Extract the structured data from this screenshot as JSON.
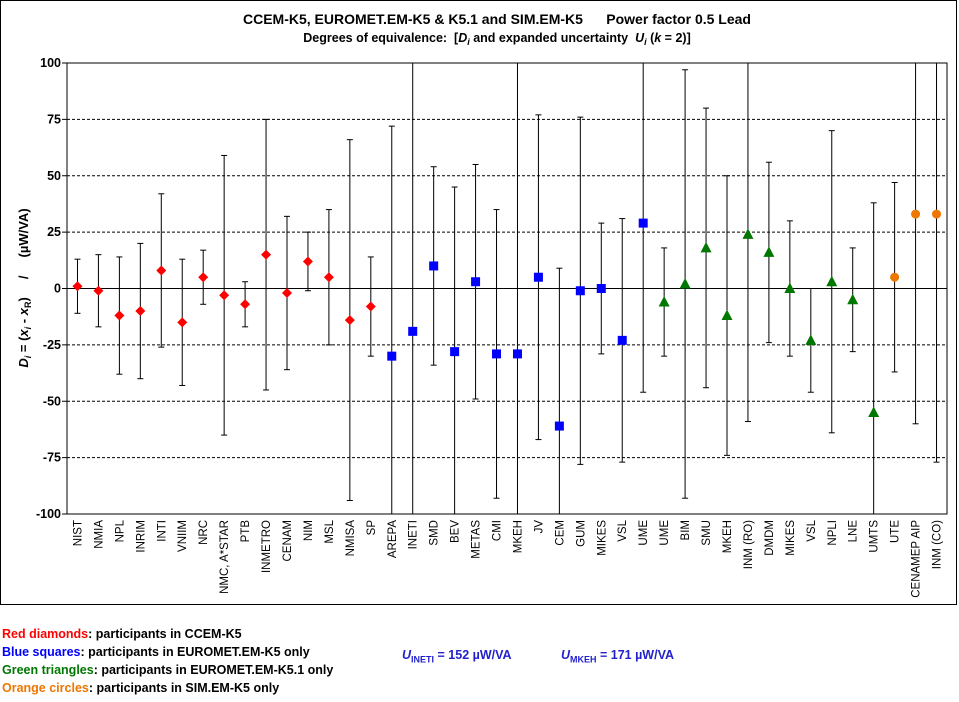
{
  "chart_data": {
    "type": "scatter",
    "title": "CCEM-K5, EUROMET.EM-K5 & K5.1 and SIM.EM-K5      Power factor 0.5 Lead",
    "subtitle_prefix": "Degrees of equivalence:  [",
    "subtitle_D": "D",
    "subtitle_i": "i",
    "subtitle_mid": " and expanded uncertainty  ",
    "subtitle_U": "U",
    "subtitle_k": "k",
    "subtitle_end": " = 2)]",
    "ylabel": "D_i = (x_i - x_R)   /   (µW/VA)",
    "ylim": [
      -100,
      100
    ],
    "yticks": [
      -100,
      -75,
      -50,
      -25,
      0,
      25,
      50,
      75,
      100
    ],
    "grid": true,
    "series_colors": {
      "red": "#ff0000",
      "blue": "#0000ff",
      "green": "#007700",
      "orange": "#ee7700"
    },
    "points": [
      {
        "label": "NIST",
        "value": 1,
        "unc": 12,
        "marker": "red"
      },
      {
        "label": "NMIA",
        "value": -1,
        "unc": 16,
        "marker": "red"
      },
      {
        "label": "NPL",
        "value": -12,
        "unc": 26,
        "marker": "red"
      },
      {
        "label": "INRIM",
        "value": -10,
        "unc": 30,
        "marker": "red"
      },
      {
        "label": "INTI",
        "value": 8,
        "unc": 34,
        "marker": "red"
      },
      {
        "label": "VNIIM",
        "value": -15,
        "unc": 28,
        "marker": "red"
      },
      {
        "label": "NRC",
        "value": 5,
        "unc": 12,
        "marker": "red"
      },
      {
        "label": "NMC, A*STAR",
        "value": -3,
        "unc": 62,
        "marker": "red"
      },
      {
        "label": "PTB",
        "value": -7,
        "unc": 10,
        "marker": "red"
      },
      {
        "label": "INMETRO",
        "value": 15,
        "unc": 60,
        "marker": "red"
      },
      {
        "label": "CENAM",
        "value": -2,
        "unc": 34,
        "marker": "red"
      },
      {
        "label": "NIM",
        "value": 12,
        "unc": 13,
        "marker": "red"
      },
      {
        "label": "MSL",
        "value": 5,
        "unc": 30,
        "marker": "red"
      },
      {
        "label": "NMISA",
        "value": -14,
        "unc": 80,
        "marker": "red"
      },
      {
        "label": "SP",
        "value": -8,
        "unc": 22,
        "marker": "red"
      },
      {
        "label": "AREPA",
        "value": -30,
        "unc": 102,
        "marker": "blue"
      },
      {
        "label": "INETI",
        "value": -19,
        "unc": 152,
        "marker": "blue"
      },
      {
        "label": "SMD",
        "value": 10,
        "unc": 44,
        "marker": "blue"
      },
      {
        "label": "BEV",
        "value": -28,
        "unc": 73,
        "marker": "blue"
      },
      {
        "label": "METAS",
        "value": 3,
        "unc": 52,
        "marker": "blue"
      },
      {
        "label": "CMI",
        "value": -29,
        "unc": 64,
        "marker": "blue"
      },
      {
        "label": "MKEH",
        "value": -29,
        "unc": 171,
        "marker": "blue"
      },
      {
        "label": "JV",
        "value": 5,
        "unc": 72,
        "marker": "blue"
      },
      {
        "label": "CEM",
        "value": -61,
        "unc": 70,
        "marker": "blue"
      },
      {
        "label": "GUM",
        "value": -1,
        "unc": 77,
        "marker": "blue"
      },
      {
        "label": "MIKES",
        "value": 0,
        "unc": 29,
        "marker": "blue"
      },
      {
        "label": "VSL",
        "value": -23,
        "unc": 54,
        "marker": "blue"
      },
      {
        "label": "UME",
        "value": 29,
        "unc": 75,
        "marker": "blue"
      },
      {
        "label": "UME",
        "value": -6,
        "unc": 24,
        "marker": "green"
      },
      {
        "label": "BIM",
        "value": 2,
        "unc": 95,
        "marker": "green"
      },
      {
        "label": "SMU",
        "value": 18,
        "unc": 62,
        "marker": "green"
      },
      {
        "label": "MKEH",
        "value": -12,
        "unc": 62,
        "marker": "green"
      },
      {
        "label": "INM (RO)",
        "value": 24,
        "unc": 83,
        "marker": "green"
      },
      {
        "label": "DMDM",
        "value": 16,
        "unc": 40,
        "marker": "green"
      },
      {
        "label": "MIKES",
        "value": 0,
        "unc": 30,
        "marker": "green"
      },
      {
        "label": "VSL",
        "value": -23,
        "unc": 23,
        "marker": "green"
      },
      {
        "label": "NPLI",
        "value": 3,
        "unc": 67,
        "marker": "green"
      },
      {
        "label": "LNE",
        "value": -5,
        "unc": 23,
        "marker": "green"
      },
      {
        "label": "UMTS",
        "value": -55,
        "unc": 93,
        "marker": "green"
      },
      {
        "label": "UTE",
        "value": 5,
        "unc": 42,
        "marker": "orange"
      },
      {
        "label": "CENAMEP AIP",
        "value": 33,
        "unc": 93,
        "marker": "orange"
      },
      {
        "label": "INM (CO)",
        "value": 33,
        "unc": 110,
        "marker": "orange"
      }
    ]
  },
  "legend": [
    {
      "key": "Red diamonds",
      "rest": ": participants in CCEM-K5",
      "color": "#ff0000"
    },
    {
      "key": "Blue squares",
      "rest": ": participants in EUROMET.EM-K5 only",
      "color": "#0000ff"
    },
    {
      "key": "Green triangles",
      "rest": ": participants in EUROMET.EM-K5.1 only",
      "color": "#007700"
    },
    {
      "key": "Orange circles",
      "rest": ": participants in SIM.EM-K5 only",
      "color": "#ee7700"
    }
  ],
  "uncertainty_notes": {
    "ineti": {
      "U": "U",
      "sub": "INETI",
      "text": " = 152 µW/VA"
    },
    "mkeh": {
      "U": "U",
      "sub": "MKEH",
      "text": " = 171 µW/VA"
    }
  }
}
